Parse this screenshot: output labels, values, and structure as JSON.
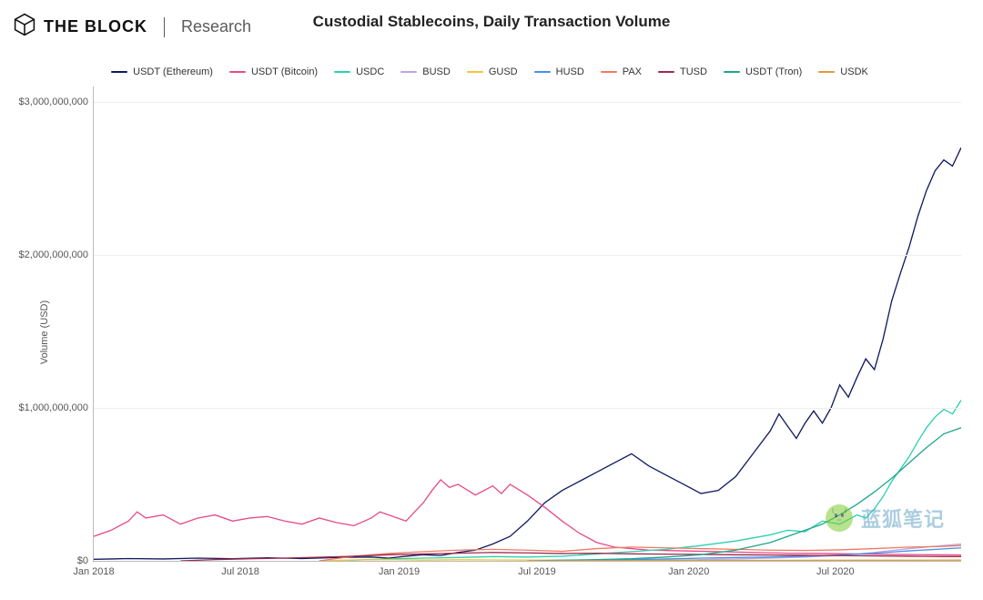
{
  "brand": {
    "name": "THE BLOCK",
    "sub": "Research"
  },
  "chart": {
    "type": "line",
    "title": "Custodial Stablecoins, Daily Transaction Volume",
    "ylabel": "Volume (USD)",
    "background_color": "#ffffff",
    "grid_color": "#eeeeee",
    "axis_color": "#bbbbbb",
    "title_fontsize": 17,
    "label_fontsize": 11,
    "xlim": [
      0,
      100
    ],
    "ylim": [
      0,
      3100000000
    ],
    "ytick_values": [
      0,
      1000000000,
      2000000000,
      3000000000
    ],
    "ytick_labels": [
      "$0",
      "$1,000,000,000",
      "$2,000,000,000",
      "$3,000,000,000"
    ],
    "xtick_positions": [
      0,
      16.9,
      35.2,
      51.1,
      68.6,
      85.5
    ],
    "xtick_labels": [
      "Jan 2018",
      "Jul 2018",
      "Jan 2019",
      "Jul 2019",
      "Jan 2020",
      "Jul 2020"
    ],
    "line_width": 1.3,
    "series": [
      {
        "name": "USDT (Ethereum)",
        "color": "#0f1a60",
        "points": [
          [
            0,
            10
          ],
          [
            4,
            15
          ],
          [
            8,
            12
          ],
          [
            12,
            18
          ],
          [
            16,
            14
          ],
          [
            20,
            20
          ],
          [
            24,
            15
          ],
          [
            28,
            22
          ],
          [
            32,
            25
          ],
          [
            34,
            18
          ],
          [
            36,
            30
          ],
          [
            38,
            40
          ],
          [
            40,
            35
          ],
          [
            42,
            55
          ],
          [
            44,
            70
          ],
          [
            46,
            110
          ],
          [
            48,
            160
          ],
          [
            50,
            260
          ],
          [
            52,
            380
          ],
          [
            54,
            460
          ],
          [
            56,
            520
          ],
          [
            58,
            580
          ],
          [
            60,
            640
          ],
          [
            62,
            700
          ],
          [
            64,
            620
          ],
          [
            66,
            560
          ],
          [
            68,
            500
          ],
          [
            70,
            440
          ],
          [
            72,
            460
          ],
          [
            74,
            550
          ],
          [
            76,
            700
          ],
          [
            78,
            850
          ],
          [
            79,
            960
          ],
          [
            80,
            880
          ],
          [
            81,
            800
          ],
          [
            82,
            900
          ],
          [
            83,
            980
          ],
          [
            84,
            900
          ],
          [
            85,
            1000
          ],
          [
            86,
            1150
          ],
          [
            87,
            1070
          ],
          [
            88,
            1200
          ],
          [
            89,
            1320
          ],
          [
            90,
            1250
          ],
          [
            91,
            1450
          ],
          [
            92,
            1700
          ],
          [
            93,
            1880
          ],
          [
            94,
            2050
          ],
          [
            95,
            2250
          ],
          [
            96,
            2420
          ],
          [
            97,
            2550
          ],
          [
            98,
            2620
          ],
          [
            99,
            2580
          ],
          [
            100,
            2700
          ]
        ]
      },
      {
        "name": "USDT (Bitcoin)",
        "color": "#e84a8a",
        "points": [
          [
            0,
            160
          ],
          [
            2,
            200
          ],
          [
            4,
            260
          ],
          [
            5,
            320
          ],
          [
            6,
            280
          ],
          [
            8,
            300
          ],
          [
            10,
            240
          ],
          [
            12,
            280
          ],
          [
            14,
            300
          ],
          [
            16,
            260
          ],
          [
            18,
            280
          ],
          [
            20,
            290
          ],
          [
            22,
            260
          ],
          [
            24,
            240
          ],
          [
            26,
            280
          ],
          [
            28,
            250
          ],
          [
            30,
            230
          ],
          [
            32,
            280
          ],
          [
            33,
            320
          ],
          [
            34,
            300
          ],
          [
            36,
            260
          ],
          [
            38,
            380
          ],
          [
            39,
            460
          ],
          [
            40,
            530
          ],
          [
            41,
            480
          ],
          [
            42,
            500
          ],
          [
            44,
            430
          ],
          [
            46,
            490
          ],
          [
            47,
            440
          ],
          [
            48,
            500
          ],
          [
            50,
            430
          ],
          [
            52,
            350
          ],
          [
            54,
            260
          ],
          [
            56,
            180
          ],
          [
            58,
            120
          ],
          [
            60,
            90
          ],
          [
            62,
            80
          ],
          [
            64,
            70
          ],
          [
            68,
            65
          ],
          [
            72,
            60
          ],
          [
            76,
            55
          ],
          [
            80,
            50
          ],
          [
            84,
            48
          ],
          [
            88,
            45
          ],
          [
            92,
            42
          ],
          [
            96,
            40
          ],
          [
            100,
            38
          ]
        ]
      },
      {
        "name": "USDC",
        "color": "#2bd1b0",
        "points": [
          [
            28,
            0
          ],
          [
            30,
            5
          ],
          [
            34,
            12
          ],
          [
            38,
            18
          ],
          [
            42,
            22
          ],
          [
            46,
            28
          ],
          [
            50,
            25
          ],
          [
            54,
            30
          ],
          [
            58,
            45
          ],
          [
            62,
            60
          ],
          [
            66,
            75
          ],
          [
            70,
            100
          ],
          [
            74,
            130
          ],
          [
            78,
            170
          ],
          [
            80,
            200
          ],
          [
            82,
            190
          ],
          [
            84,
            260
          ],
          [
            86,
            240
          ],
          [
            88,
            300
          ],
          [
            89,
            280
          ],
          [
            90,
            340
          ],
          [
            91,
            420
          ],
          [
            92,
            520
          ],
          [
            93,
            600
          ],
          [
            94,
            680
          ],
          [
            95,
            780
          ],
          [
            96,
            870
          ],
          [
            97,
            940
          ],
          [
            98,
            990
          ],
          [
            99,
            960
          ],
          [
            100,
            1050
          ]
        ]
      },
      {
        "name": "BUSD",
        "color": "#b9a7e6",
        "points": [
          [
            62,
            0
          ],
          [
            66,
            5
          ],
          [
            70,
            8
          ],
          [
            74,
            12
          ],
          [
            78,
            18
          ],
          [
            82,
            25
          ],
          [
            86,
            35
          ],
          [
            90,
            55
          ],
          [
            94,
            80
          ],
          [
            98,
            100
          ],
          [
            100,
            110
          ]
        ]
      },
      {
        "name": "GUSD",
        "color": "#f0c53f",
        "points": [
          [
            26,
            0
          ],
          [
            30,
            6
          ],
          [
            34,
            8
          ],
          [
            38,
            5
          ],
          [
            42,
            7
          ],
          [
            46,
            6
          ],
          [
            50,
            5
          ],
          [
            60,
            4
          ],
          [
            70,
            3
          ],
          [
            80,
            3
          ],
          [
            90,
            2
          ],
          [
            100,
            2
          ]
        ]
      },
      {
        "name": "HUSD",
        "color": "#4a90e2",
        "points": [
          [
            58,
            0
          ],
          [
            62,
            8
          ],
          [
            66,
            12
          ],
          [
            70,
            18
          ],
          [
            74,
            22
          ],
          [
            78,
            25
          ],
          [
            82,
            30
          ],
          [
            86,
            38
          ],
          [
            90,
            50
          ],
          [
            94,
            65
          ],
          [
            98,
            78
          ],
          [
            100,
            85
          ]
        ]
      },
      {
        "name": "PAX",
        "color": "#ef7a63",
        "points": [
          [
            26,
            0
          ],
          [
            30,
            30
          ],
          [
            34,
            48
          ],
          [
            38,
            60
          ],
          [
            42,
            70
          ],
          [
            46,
            75
          ],
          [
            50,
            70
          ],
          [
            54,
            62
          ],
          [
            58,
            80
          ],
          [
            62,
            90
          ],
          [
            66,
            85
          ],
          [
            70,
            80
          ],
          [
            74,
            75
          ],
          [
            78,
            70
          ],
          [
            82,
            68
          ],
          [
            86,
            72
          ],
          [
            90,
            80
          ],
          [
            94,
            90
          ],
          [
            98,
            95
          ],
          [
            100,
            100
          ]
        ]
      },
      {
        "name": "TUSD",
        "color": "#9e2a4d",
        "points": [
          [
            10,
            0
          ],
          [
            14,
            8
          ],
          [
            18,
            14
          ],
          [
            22,
            18
          ],
          [
            26,
            24
          ],
          [
            30,
            30
          ],
          [
            34,
            40
          ],
          [
            38,
            45
          ],
          [
            42,
            50
          ],
          [
            46,
            55
          ],
          [
            50,
            52
          ],
          [
            54,
            48
          ],
          [
            58,
            50
          ],
          [
            62,
            46
          ],
          [
            66,
            44
          ],
          [
            70,
            42
          ],
          [
            74,
            40
          ],
          [
            78,
            38
          ],
          [
            82,
            36
          ],
          [
            86,
            34
          ],
          [
            90,
            32
          ],
          [
            94,
            30
          ],
          [
            98,
            28
          ],
          [
            100,
            28
          ]
        ]
      },
      {
        "name": "USDT (Tron)",
        "color": "#1fa58a",
        "points": [
          [
            50,
            0
          ],
          [
            54,
            4
          ],
          [
            58,
            8
          ],
          [
            62,
            14
          ],
          [
            66,
            25
          ],
          [
            70,
            40
          ],
          [
            74,
            70
          ],
          [
            78,
            120
          ],
          [
            80,
            160
          ],
          [
            82,
            200
          ],
          [
            84,
            240
          ],
          [
            86,
            300
          ],
          [
            88,
            370
          ],
          [
            90,
            450
          ],
          [
            92,
            540
          ],
          [
            94,
            640
          ],
          [
            96,
            740
          ],
          [
            98,
            830
          ],
          [
            100,
            870
          ]
        ]
      },
      {
        "name": "USDK",
        "color": "#e39a3b",
        "points": [
          [
            50,
            0
          ],
          [
            60,
            1
          ],
          [
            70,
            2
          ],
          [
            80,
            3
          ],
          [
            90,
            4
          ],
          [
            100,
            5
          ]
        ]
      }
    ]
  },
  "watermark": {
    "text": "蓝狐笔记"
  }
}
